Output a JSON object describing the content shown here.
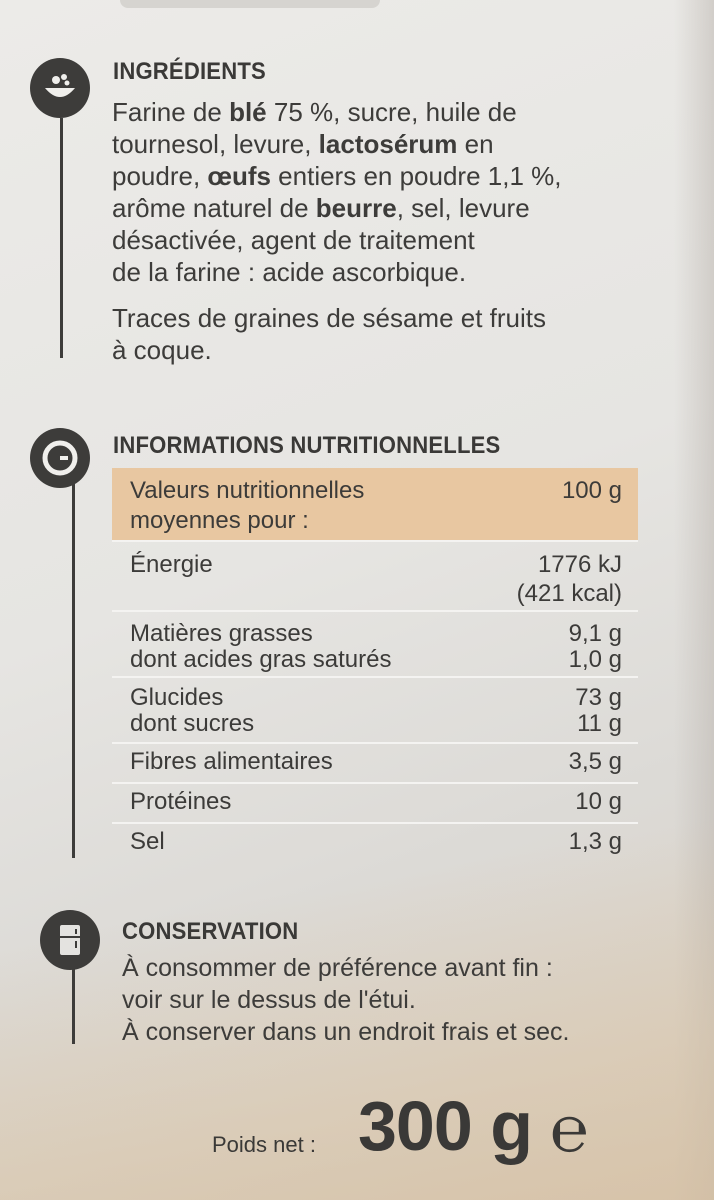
{
  "ingredients": {
    "heading": "INGRÉDIENTS",
    "icon": "bowl-icon",
    "lines": [
      [
        {
          "t": "Farine de ",
          "b": false
        },
        {
          "t": "blé",
          "b": true
        },
        {
          "t": " 75 %, sucre, huile de",
          "b": false
        }
      ],
      [
        {
          "t": "tournesol, levure, ",
          "b": false
        },
        {
          "t": "lactosérum",
          "b": true
        },
        {
          "t": " en",
          "b": false
        }
      ],
      [
        {
          "t": "poudre, ",
          "b": false
        },
        {
          "t": "œufs",
          "b": true
        },
        {
          "t": " entiers en poudre 1,1 %,",
          "b": false
        }
      ],
      [
        {
          "t": "arôme naturel de ",
          "b": false
        },
        {
          "t": "beurre",
          "b": true
        },
        {
          "t": ", sel, levure",
          "b": false
        }
      ],
      [
        {
          "t": "désactivée, agent de traitement",
          "b": false
        }
      ],
      [
        {
          "t": "de la farine : acide ascorbique.",
          "b": false
        }
      ]
    ],
    "traces_lines": [
      "Traces de graines de sésame et fruits",
      "à coque."
    ]
  },
  "nutrition": {
    "heading": "INFORMATIONS NUTRITIONNELLES",
    "icon": "clock-icon",
    "header_label_line1": "Valeurs nutritionnelles",
    "header_label_line2": "moyennes pour :",
    "header_value": "100 g",
    "energy": {
      "label": "Énergie",
      "kj": "1776 kJ",
      "kcal": "(421 kcal)"
    },
    "fat": {
      "label": "Matières grasses",
      "value": "9,1 g",
      "sub_label": "dont acides gras saturés",
      "sub_value": "1,0 g"
    },
    "carbs": {
      "label": "Glucides",
      "value": "73 g",
      "sub_label": "dont sucres",
      "sub_value": "11 g"
    },
    "fibre": {
      "label": "Fibres alimentaires",
      "value": "3,5 g"
    },
    "protein": {
      "label": "Protéines",
      "value": "10 g"
    },
    "salt": {
      "label": "Sel",
      "value": "1,3 g"
    }
  },
  "conservation": {
    "heading": "CONSERVATION",
    "icon": "fridge-icon",
    "line1": "À consommer de préférence avant fin :",
    "line2": "voir sur le dessus de l'étui.",
    "line3": "À conserver dans un endroit frais et sec."
  },
  "weight": {
    "label": "Poids net :",
    "value": "300 g",
    "estimated_mark": "℮"
  }
}
